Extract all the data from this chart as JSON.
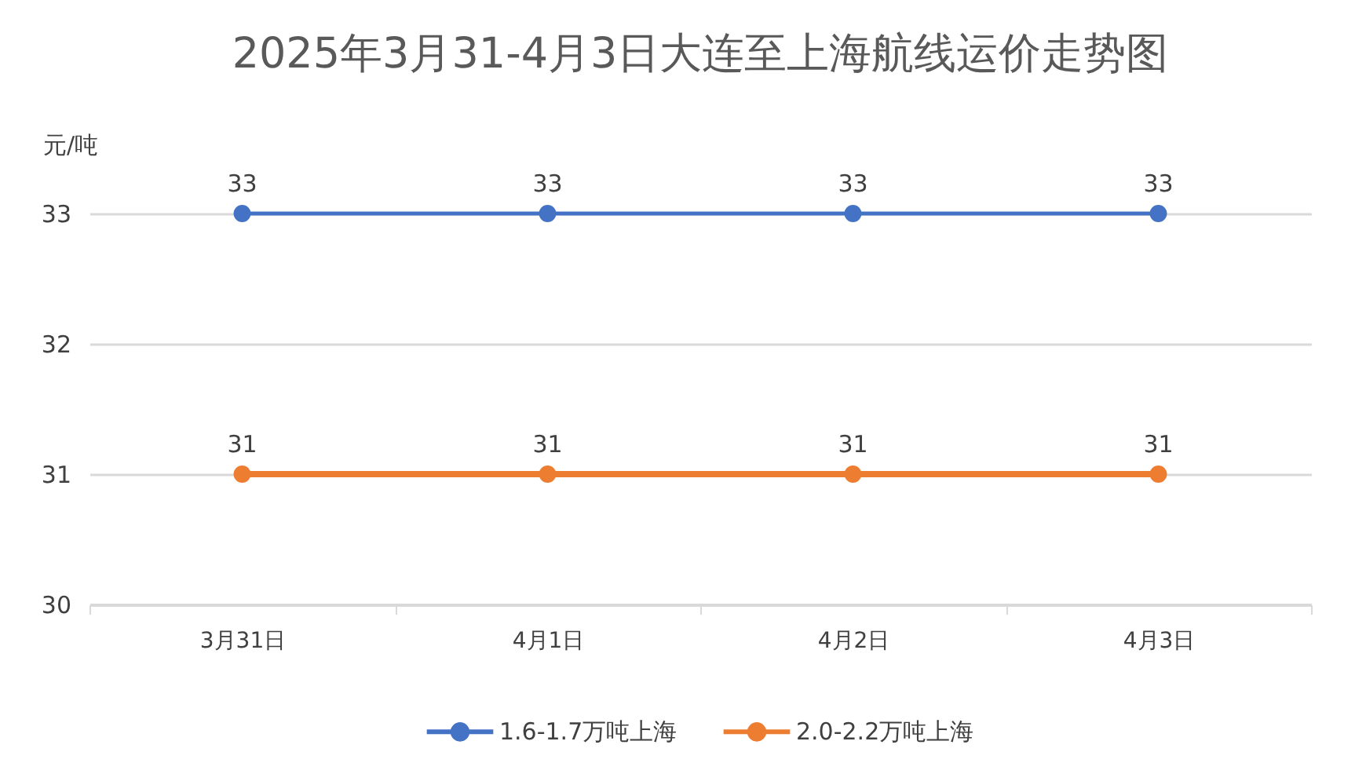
{
  "chart_data": {
    "type": "line",
    "title": "2025年3月31-4月3日大连至上海航线运价走势图",
    "ylabel": "元/吨",
    "categories": [
      "3月31日",
      "4月1日",
      "4月2日",
      "4月3日"
    ],
    "series": [
      {
        "name": "1.6-1.7万吨上海",
        "color": "#4472c4",
        "values": [
          33,
          33,
          33,
          33
        ]
      },
      {
        "name": "2.0-2.2万吨上海",
        "color": "#ed7d31",
        "values": [
          31,
          31,
          31,
          31
        ]
      }
    ],
    "ylim": [
      30,
      33
    ],
    "yticks": [
      30,
      31,
      32,
      33
    ],
    "grid": "y",
    "legend": "bottom",
    "marker": "circle",
    "line_style": "solid",
    "data_labels": true
  }
}
